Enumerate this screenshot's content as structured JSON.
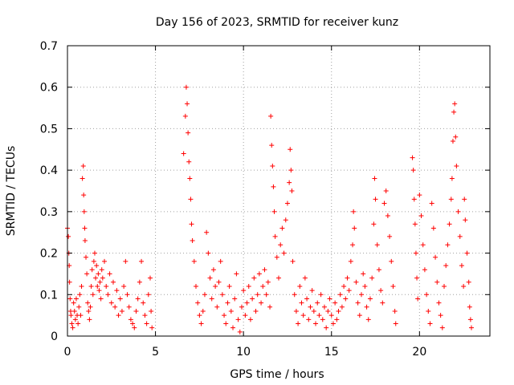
{
  "chart_data": {
    "type": "scatter",
    "title": "Day 156 of 2023, SRMTID for receiver kunz",
    "xlabel": "GPS time / hours",
    "ylabel": "SRMTID / TECUs",
    "xlim": [
      0,
      24
    ],
    "ylim": [
      0,
      0.7
    ],
    "xticks": [
      0,
      5,
      10,
      15,
      20
    ],
    "xtick_labels": [
      "0",
      "5",
      "10",
      "15",
      "20"
    ],
    "yticks": [
      0,
      0.1,
      0.2,
      0.3,
      0.4,
      0.5,
      0.6,
      0.7
    ],
    "ytick_labels": [
      "0",
      "0.1",
      "0.2",
      "0.3",
      "0.4",
      "0.5",
      "0.6",
      "0.7"
    ],
    "grid": true,
    "marker": "+",
    "marker_color": "#ff0000",
    "series": [
      {
        "name": "SRMTID",
        "points": [
          [
            0.0,
            0.26
          ],
          [
            0.05,
            0.24
          ],
          [
            0.08,
            0.2
          ],
          [
            0.1,
            0.17
          ],
          [
            0.12,
            0.13
          ],
          [
            0.15,
            0.09
          ],
          [
            0.18,
            0.06
          ],
          [
            0.2,
            0.05
          ],
          [
            0.25,
            0.03
          ],
          [
            0.3,
            0.02
          ],
          [
            0.35,
            0.08
          ],
          [
            0.4,
            0.06
          ],
          [
            0.45,
            0.04
          ],
          [
            0.5,
            0.09
          ],
          [
            0.55,
            0.05
          ],
          [
            0.6,
            0.03
          ],
          [
            0.65,
            0.07
          ],
          [
            0.7,
            0.1
          ],
          [
            0.75,
            0.05
          ],
          [
            0.8,
            0.12
          ],
          [
            0.85,
            0.38
          ],
          [
            0.9,
            0.41
          ],
          [
            0.92,
            0.34
          ],
          [
            0.95,
            0.3
          ],
          [
            0.98,
            0.26
          ],
          [
            1.0,
            0.23
          ],
          [
            1.05,
            0.19
          ],
          [
            1.1,
            0.15
          ],
          [
            1.15,
            0.08
          ],
          [
            1.2,
            0.06
          ],
          [
            1.25,
            0.04
          ],
          [
            1.3,
            0.07
          ],
          [
            1.35,
            0.12
          ],
          [
            1.4,
            0.16
          ],
          [
            1.45,
            0.1
          ],
          [
            1.5,
            0.18
          ],
          [
            1.55,
            0.2
          ],
          [
            1.6,
            0.14
          ],
          [
            1.65,
            0.17
          ],
          [
            1.7,
            0.12
          ],
          [
            1.75,
            0.15
          ],
          [
            1.8,
            0.11
          ],
          [
            1.85,
            0.13
          ],
          [
            1.9,
            0.09
          ],
          [
            1.95,
            0.16
          ],
          [
            2.0,
            0.14
          ],
          [
            2.1,
            0.18
          ],
          [
            2.2,
            0.12
          ],
          [
            2.3,
            0.1
          ],
          [
            2.4,
            0.15
          ],
          [
            2.5,
            0.08
          ],
          [
            2.6,
            0.13
          ],
          [
            2.7,
            0.07
          ],
          [
            2.8,
            0.11
          ],
          [
            2.9,
            0.05
          ],
          [
            3.0,
            0.09
          ],
          [
            3.1,
            0.06
          ],
          [
            3.2,
            0.12
          ],
          [
            3.3,
            0.18
          ],
          [
            3.4,
            0.1
          ],
          [
            3.5,
            0.07
          ],
          [
            3.6,
            0.04
          ],
          [
            3.7,
            0.03
          ],
          [
            3.8,
            0.02
          ],
          [
            3.9,
            0.06
          ],
          [
            4.0,
            0.09
          ],
          [
            4.1,
            0.13
          ],
          [
            4.2,
            0.18
          ],
          [
            4.3,
            0.08
          ],
          [
            4.4,
            0.05
          ],
          [
            4.5,
            0.03
          ],
          [
            4.6,
            0.1
          ],
          [
            4.7,
            0.14
          ],
          [
            4.75,
            0.06
          ],
          [
            4.8,
            0.02
          ],
          [
            6.6,
            0.44
          ],
          [
            6.7,
            0.53
          ],
          [
            6.75,
            0.6
          ],
          [
            6.8,
            0.56
          ],
          [
            6.85,
            0.49
          ],
          [
            6.9,
            0.42
          ],
          [
            6.95,
            0.38
          ],
          [
            7.0,
            0.33
          ],
          [
            7.05,
            0.27
          ],
          [
            7.1,
            0.23
          ],
          [
            7.2,
            0.18
          ],
          [
            7.3,
            0.12
          ],
          [
            7.4,
            0.08
          ],
          [
            7.5,
            0.05
          ],
          [
            7.6,
            0.03
          ],
          [
            7.7,
            0.06
          ],
          [
            7.8,
            0.1
          ],
          [
            7.9,
            0.25
          ],
          [
            8.0,
            0.2
          ],
          [
            8.1,
            0.14
          ],
          [
            8.2,
            0.09
          ],
          [
            8.3,
            0.16
          ],
          [
            8.4,
            0.12
          ],
          [
            8.5,
            0.07
          ],
          [
            8.6,
            0.13
          ],
          [
            8.7,
            0.18
          ],
          [
            8.8,
            0.1
          ],
          [
            8.9,
            0.05
          ],
          [
            9.0,
            0.03
          ],
          [
            9.1,
            0.08
          ],
          [
            9.2,
            0.12
          ],
          [
            9.3,
            0.06
          ],
          [
            9.4,
            0.02
          ],
          [
            9.5,
            0.09
          ],
          [
            9.6,
            0.15
          ],
          [
            9.7,
            0.04
          ],
          [
            9.8,
            0.01
          ],
          [
            9.9,
            0.07
          ],
          [
            10.0,
            0.11
          ],
          [
            10.1,
            0.05
          ],
          [
            10.2,
            0.08
          ],
          [
            10.3,
            0.12
          ],
          [
            10.4,
            0.04
          ],
          [
            10.5,
            0.09
          ],
          [
            10.6,
            0.14
          ],
          [
            10.7,
            0.06
          ],
          [
            10.8,
            0.1
          ],
          [
            10.9,
            0.15
          ],
          [
            11.0,
            0.08
          ],
          [
            11.1,
            0.12
          ],
          [
            11.2,
            0.16
          ],
          [
            11.3,
            0.1
          ],
          [
            11.4,
            0.13
          ],
          [
            11.5,
            0.07
          ],
          [
            11.55,
            0.53
          ],
          [
            11.6,
            0.46
          ],
          [
            11.65,
            0.41
          ],
          [
            11.7,
            0.36
          ],
          [
            11.75,
            0.3
          ],
          [
            11.8,
            0.24
          ],
          [
            11.9,
            0.19
          ],
          [
            12.0,
            0.14
          ],
          [
            12.1,
            0.22
          ],
          [
            12.2,
            0.26
          ],
          [
            12.3,
            0.2
          ],
          [
            12.4,
            0.28
          ],
          [
            12.5,
            0.32
          ],
          [
            12.6,
            0.37
          ],
          [
            12.65,
            0.45
          ],
          [
            12.7,
            0.4
          ],
          [
            12.75,
            0.35
          ],
          [
            12.8,
            0.18
          ],
          [
            12.9,
            0.1
          ],
          [
            13.0,
            0.06
          ],
          [
            13.1,
            0.03
          ],
          [
            13.2,
            0.12
          ],
          [
            13.3,
            0.08
          ],
          [
            13.4,
            0.05
          ],
          [
            13.5,
            0.14
          ],
          [
            13.6,
            0.09
          ],
          [
            13.7,
            0.04
          ],
          [
            13.8,
            0.07
          ],
          [
            13.9,
            0.11
          ],
          [
            14.0,
            0.06
          ],
          [
            14.1,
            0.03
          ],
          [
            14.2,
            0.08
          ],
          [
            14.3,
            0.05
          ],
          [
            14.4,
            0.1
          ],
          [
            14.5,
            0.04
          ],
          [
            14.6,
            0.07
          ],
          [
            14.7,
            0.02
          ],
          [
            14.8,
            0.06
          ],
          [
            14.9,
            0.09
          ],
          [
            15.0,
            0.05
          ],
          [
            15.1,
            0.03
          ],
          [
            15.2,
            0.08
          ],
          [
            15.3,
            0.04
          ],
          [
            15.4,
            0.06
          ],
          [
            15.5,
            0.1
          ],
          [
            15.6,
            0.07
          ],
          [
            15.7,
            0.12
          ],
          [
            15.8,
            0.09
          ],
          [
            15.9,
            0.14
          ],
          [
            16.0,
            0.11
          ],
          [
            16.1,
            0.18
          ],
          [
            16.2,
            0.22
          ],
          [
            16.25,
            0.3
          ],
          [
            16.3,
            0.26
          ],
          [
            16.4,
            0.13
          ],
          [
            16.5,
            0.08
          ],
          [
            16.6,
            0.05
          ],
          [
            16.7,
            0.1
          ],
          [
            16.8,
            0.15
          ],
          [
            16.9,
            0.12
          ],
          [
            17.0,
            0.07
          ],
          [
            17.1,
            0.04
          ],
          [
            17.2,
            0.09
          ],
          [
            17.3,
            0.14
          ],
          [
            17.4,
            0.27
          ],
          [
            17.45,
            0.38
          ],
          [
            17.5,
            0.33
          ],
          [
            17.6,
            0.22
          ],
          [
            17.7,
            0.16
          ],
          [
            17.8,
            0.11
          ],
          [
            17.9,
            0.08
          ],
          [
            18.0,
            0.32
          ],
          [
            18.1,
            0.35
          ],
          [
            18.2,
            0.29
          ],
          [
            18.3,
            0.24
          ],
          [
            18.4,
            0.18
          ],
          [
            18.5,
            0.12
          ],
          [
            18.6,
            0.06
          ],
          [
            18.65,
            0.03
          ],
          [
            19.6,
            0.43
          ],
          [
            19.65,
            0.4
          ],
          [
            19.7,
            0.33
          ],
          [
            19.75,
            0.27
          ],
          [
            19.8,
            0.2
          ],
          [
            19.85,
            0.14
          ],
          [
            19.9,
            0.09
          ],
          [
            20.0,
            0.34
          ],
          [
            20.1,
            0.29
          ],
          [
            20.2,
            0.22
          ],
          [
            20.3,
            0.16
          ],
          [
            20.4,
            0.1
          ],
          [
            20.5,
            0.06
          ],
          [
            20.6,
            0.03
          ],
          [
            20.7,
            0.32
          ],
          [
            20.8,
            0.26
          ],
          [
            20.9,
            0.19
          ],
          [
            21.0,
            0.13
          ],
          [
            21.1,
            0.08
          ],
          [
            21.2,
            0.05
          ],
          [
            21.3,
            0.02
          ],
          [
            21.4,
            0.12
          ],
          [
            21.5,
            0.17
          ],
          [
            21.6,
            0.22
          ],
          [
            21.7,
            0.27
          ],
          [
            21.8,
            0.33
          ],
          [
            21.85,
            0.38
          ],
          [
            21.9,
            0.47
          ],
          [
            21.95,
            0.54
          ],
          [
            22.0,
            0.56
          ],
          [
            22.05,
            0.48
          ],
          [
            22.1,
            0.41
          ],
          [
            22.2,
            0.3
          ],
          [
            22.3,
            0.24
          ],
          [
            22.4,
            0.17
          ],
          [
            22.5,
            0.12
          ],
          [
            22.55,
            0.33
          ],
          [
            22.6,
            0.28
          ],
          [
            22.7,
            0.2
          ],
          [
            22.8,
            0.13
          ],
          [
            22.85,
            0.07
          ],
          [
            22.9,
            0.04
          ],
          [
            22.95,
            0.02
          ]
        ]
      }
    ]
  }
}
